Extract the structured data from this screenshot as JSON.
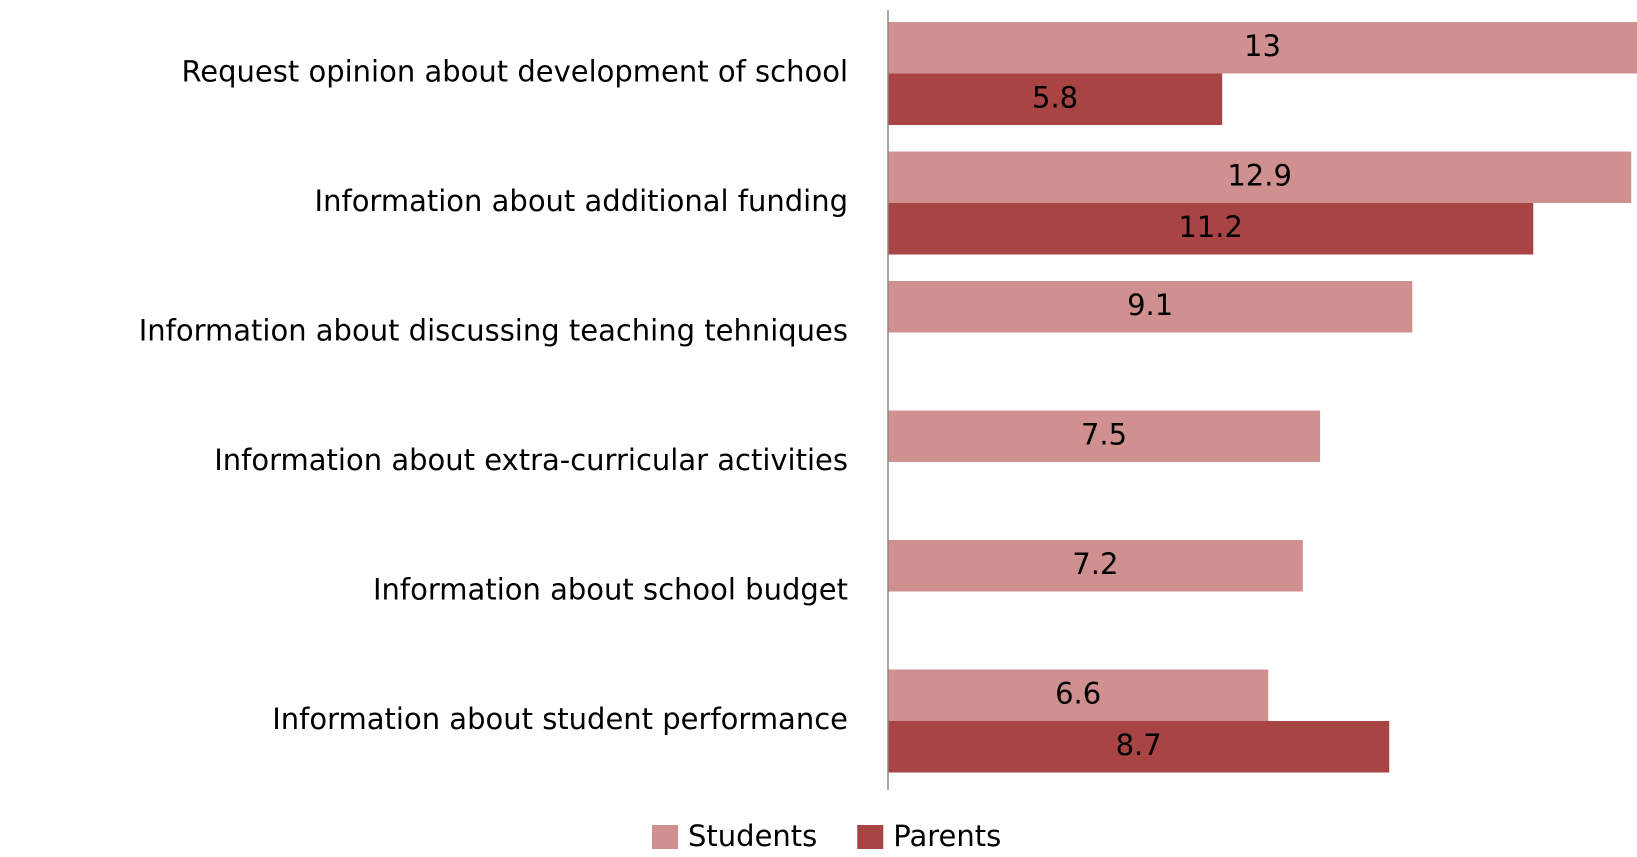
{
  "chart_data": {
    "type": "bar",
    "orientation": "horizontal",
    "categories": [
      "Request opinion about  development of school",
      "Information about additional funding",
      "Information about discussing teaching tehniques",
      "Information about extra-curricular activities",
      "Information about school budget",
      "Information about student performance"
    ],
    "series": [
      {
        "name": "Students",
        "color": "#d09090",
        "values": [
          13,
          12.9,
          9.1,
          7.5,
          7.2,
          6.6
        ]
      },
      {
        "name": "Parents",
        "color": "#a84444",
        "values": [
          5.8,
          11.2,
          null,
          null,
          null,
          8.7
        ]
      }
    ],
    "legend": "bottom"
  }
}
